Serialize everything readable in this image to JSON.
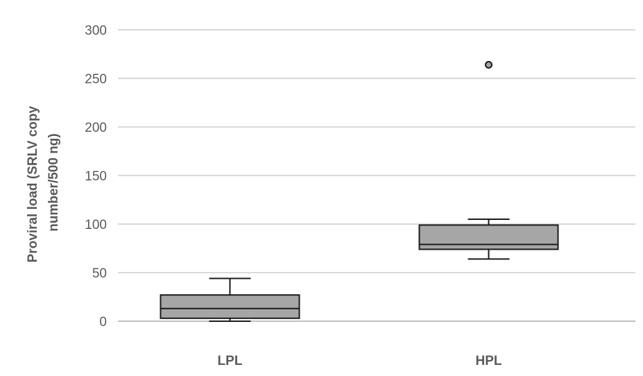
{
  "chart_data": {
    "type": "box",
    "title": "",
    "xlabel": "",
    "ylabel": "Proviral load (SRLV copy number/500 ng)",
    "ylabel_lines": [
      "Proviral load (SRLV copy",
      "number/500 ng)"
    ],
    "ylim": [
      0,
      300
    ],
    "yticks": [
      0,
      50,
      100,
      150,
      200,
      250,
      300
    ],
    "ytick_labels": [
      "0",
      "50",
      "100",
      "150",
      "200",
      "250",
      "300"
    ],
    "grid": true,
    "legend": "none",
    "categories": [
      "LPL",
      "HPL"
    ],
    "boxes": [
      {
        "category": "LPL",
        "whisker_low": 0,
        "q1": 3,
        "median": 13,
        "q3": 27,
        "whisker_high": 44,
        "outliers": []
      },
      {
        "category": "HPL",
        "whisker_low": 64,
        "q1": 74,
        "median": 79,
        "q3": 99,
        "whisker_high": 105,
        "outliers": [
          264
        ]
      }
    ],
    "colors": {
      "box_fill": "#a6a6a6",
      "box_stroke": "#1a1a1a",
      "grid": "#d9d9d9",
      "axis": "#bfbfbf",
      "text": "#595959",
      "outlier_fill": "#a6a6a6"
    }
  }
}
